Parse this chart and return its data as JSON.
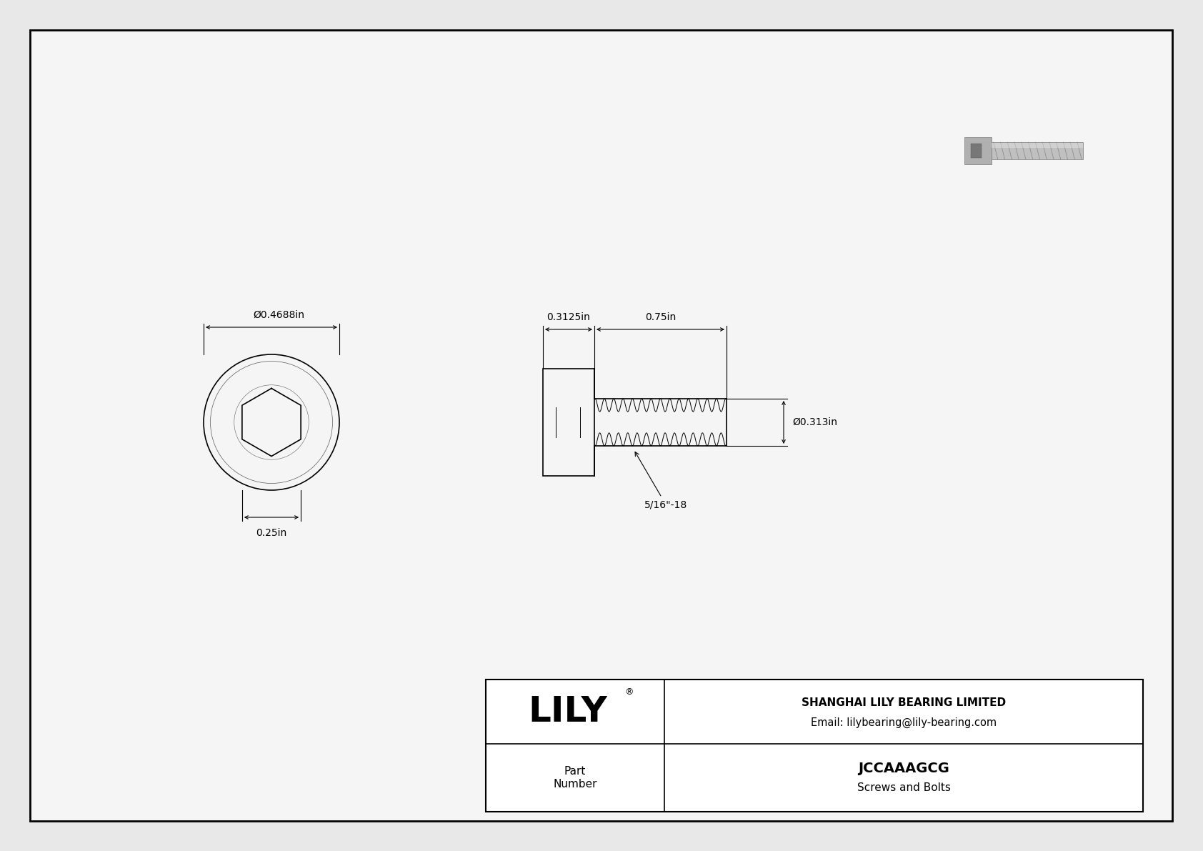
{
  "bg_color": "#e8e8e8",
  "drawing_bg": "#f5f5f5",
  "border_color": "#000000",
  "line_color": "#000000",
  "title": "JCCAAAGCG",
  "subtitle": "Screws and Bolts",
  "company": "SHANGHAI LILY BEARING LIMITED",
  "email": "Email: lilybearing@lily-bearing.com",
  "part_label": "Part\nNumber",
  "lily_text": "LILY",
  "dim_head_od": "Ø0.4688in",
  "dim_hex_drive": "0.25in",
  "dim_head_len": "0.3125in",
  "dim_shank_len": "0.75in",
  "dim_shank_od": "Ø0.313in",
  "thread_label": "5/16\"-18",
  "font_size_dims": 10,
  "font_size_title": 14,
  "font_size_part": 11,
  "font_size_lily": 36,
  "font_size_company": 11,
  "font_size_thread": 10
}
